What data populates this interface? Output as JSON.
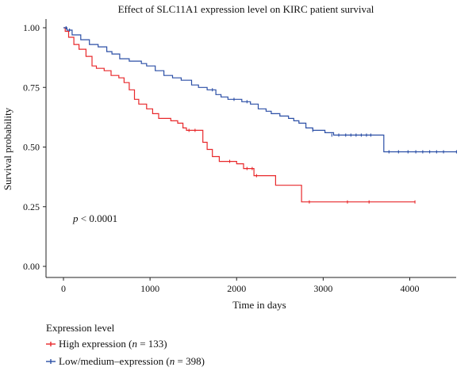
{
  "chart_data": {
    "type": "line",
    "title": "Effect of SLC11A1 expression level on KIRC patient survival",
    "xlabel": "Time in days",
    "ylabel": "Survival probability",
    "xlim": [
      0,
      4600
    ],
    "ylim": [
      0,
      1.0
    ],
    "x_ticks": [
      "0",
      "1000",
      "2000",
      "3000",
      "4000"
    ],
    "y_ticks": [
      "0.00",
      "0.25",
      "0.50",
      "0.75",
      "1.00"
    ],
    "annotation": {
      "italic": "p",
      "rest": " < 0.0001"
    },
    "legend": {
      "title": "Expression level",
      "placement": "bottom-left",
      "entries": [
        {
          "prefix": "High expression (",
          "n_italic": "n",
          "suffix": " = 133)",
          "color": "#e8282b"
        },
        {
          "prefix": "Low/medium–expression (",
          "n_italic": "n",
          "suffix": " = 398)",
          "color": "#2b4fa6"
        }
      ]
    },
    "series": [
      {
        "name": "High expression",
        "color": "#e8282b",
        "steps": [
          [
            0,
            1.0
          ],
          [
            20,
            0.985
          ],
          [
            60,
            0.96
          ],
          [
            120,
            0.93
          ],
          [
            180,
            0.91
          ],
          [
            260,
            0.88
          ],
          [
            330,
            0.84
          ],
          [
            380,
            0.83
          ],
          [
            470,
            0.82
          ],
          [
            550,
            0.8
          ],
          [
            640,
            0.79
          ],
          [
            700,
            0.77
          ],
          [
            760,
            0.74
          ],
          [
            820,
            0.7
          ],
          [
            870,
            0.68
          ],
          [
            960,
            0.66
          ],
          [
            1030,
            0.64
          ],
          [
            1100,
            0.62
          ],
          [
            1240,
            0.61
          ],
          [
            1320,
            0.6
          ],
          [
            1380,
            0.58
          ],
          [
            1420,
            0.57
          ],
          [
            1560,
            0.57
          ],
          [
            1610,
            0.52
          ],
          [
            1660,
            0.49
          ],
          [
            1720,
            0.46
          ],
          [
            1800,
            0.44
          ],
          [
            1900,
            0.44
          ],
          [
            2000,
            0.43
          ],
          [
            2080,
            0.41
          ],
          [
            2200,
            0.38
          ],
          [
            2450,
            0.34
          ],
          [
            2750,
            0.27
          ],
          [
            4060,
            0.27
          ]
        ],
        "censors": [
          [
            1450,
            0.57
          ],
          [
            1520,
            0.57
          ],
          [
            1920,
            0.44
          ],
          [
            2120,
            0.41
          ],
          [
            2180,
            0.41
          ],
          [
            2230,
            0.38
          ],
          [
            2840,
            0.27
          ],
          [
            3280,
            0.27
          ],
          [
            3530,
            0.27
          ],
          [
            4060,
            0.27
          ]
        ]
      },
      {
        "name": "Low/medium–expression",
        "color": "#2b4fa6",
        "steps": [
          [
            0,
            1.0
          ],
          [
            40,
            0.99
          ],
          [
            100,
            0.97
          ],
          [
            200,
            0.95
          ],
          [
            300,
            0.93
          ],
          [
            400,
            0.92
          ],
          [
            500,
            0.9
          ],
          [
            560,
            0.89
          ],
          [
            650,
            0.87
          ],
          [
            760,
            0.86
          ],
          [
            900,
            0.85
          ],
          [
            960,
            0.84
          ],
          [
            1060,
            0.82
          ],
          [
            1160,
            0.8
          ],
          [
            1260,
            0.79
          ],
          [
            1360,
            0.78
          ],
          [
            1480,
            0.76
          ],
          [
            1560,
            0.75
          ],
          [
            1660,
            0.74
          ],
          [
            1760,
            0.72
          ],
          [
            1820,
            0.71
          ],
          [
            1900,
            0.7
          ],
          [
            2060,
            0.69
          ],
          [
            2160,
            0.68
          ],
          [
            2250,
            0.66
          ],
          [
            2340,
            0.65
          ],
          [
            2400,
            0.64
          ],
          [
            2500,
            0.63
          ],
          [
            2600,
            0.62
          ],
          [
            2660,
            0.61
          ],
          [
            2720,
            0.6
          ],
          [
            2800,
            0.58
          ],
          [
            2880,
            0.57
          ],
          [
            3020,
            0.56
          ],
          [
            3120,
            0.55
          ],
          [
            3600,
            0.55
          ],
          [
            3700,
            0.48
          ],
          [
            4540,
            0.48
          ]
        ],
        "censors": [
          [
            30,
            1.0
          ],
          [
            70,
            0.99
          ],
          [
            1720,
            0.74
          ],
          [
            1970,
            0.7
          ],
          [
            2120,
            0.69
          ],
          [
            2880,
            0.57
          ],
          [
            3100,
            0.55
          ],
          [
            3180,
            0.55
          ],
          [
            3260,
            0.55
          ],
          [
            3320,
            0.55
          ],
          [
            3380,
            0.55
          ],
          [
            3440,
            0.55
          ],
          [
            3500,
            0.55
          ],
          [
            3550,
            0.55
          ],
          [
            3760,
            0.48
          ],
          [
            3870,
            0.48
          ],
          [
            3980,
            0.48
          ],
          [
            4070,
            0.48
          ],
          [
            4150,
            0.48
          ],
          [
            4230,
            0.48
          ],
          [
            4310,
            0.48
          ],
          [
            4390,
            0.48
          ],
          [
            4540,
            0.48
          ]
        ]
      }
    ]
  }
}
